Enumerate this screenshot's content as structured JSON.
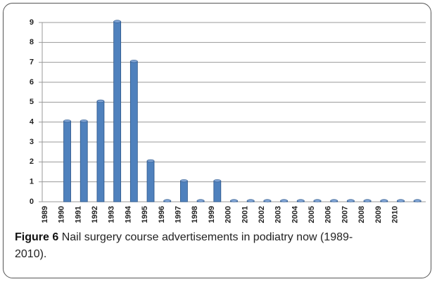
{
  "chart_data": {
    "type": "bar",
    "figure_label": "Figure 6",
    "title": "Nail surgery course advertisements in podiatry now (1989-2010).",
    "categories": [
      "1989",
      "1990",
      "1991",
      "1992",
      "1993",
      "1994",
      "1995",
      "1996",
      "1997",
      "1998",
      "1999",
      "2000",
      "2001",
      "2002",
      "2003",
      "2004",
      "2005",
      "2006",
      "2007",
      "2008",
      "2009",
      "2010",
      null
    ],
    "values": [
      null,
      4,
      4,
      5,
      9,
      7,
      2,
      0,
      1,
      0,
      1,
      0,
      0,
      0,
      0,
      0,
      0,
      0,
      0,
      0,
      0,
      0,
      0
    ],
    "color": "#4f81bd",
    "ylim": [
      0,
      9
    ],
    "yticks": [
      0,
      1,
      2,
      3,
      4,
      5,
      6,
      7,
      8,
      9
    ],
    "grid": true
  }
}
